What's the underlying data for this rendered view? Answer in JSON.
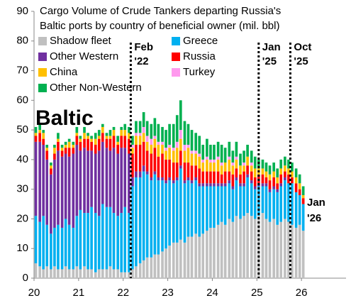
{
  "chart_data": {
    "type": "stacked-bar",
    "title": [
      "Cargo Volume of Crude Tankers departing Russia's",
      "Baltic ports by country of beneficial owner (mil. bbl)"
    ],
    "region": "Baltic",
    "x": [
      20.04,
      20.13,
      20.21,
      20.29,
      20.38,
      20.46,
      20.54,
      20.63,
      20.71,
      20.79,
      20.88,
      20.96,
      21.04,
      21.13,
      21.21,
      21.29,
      21.38,
      21.46,
      21.54,
      21.63,
      21.71,
      21.79,
      21.88,
      21.96,
      22.04,
      22.13,
      22.21,
      22.29,
      22.38,
      22.46,
      22.54,
      22.63,
      22.71,
      22.79,
      22.88,
      22.96,
      23.04,
      23.13,
      23.21,
      23.29,
      23.38,
      23.46,
      23.54,
      23.63,
      23.71,
      23.79,
      23.88,
      23.96,
      24.04,
      24.13,
      24.21,
      24.29,
      24.38,
      24.46,
      24.54,
      24.63,
      24.71,
      24.79,
      24.88,
      24.96,
      25.04,
      25.13,
      25.21,
      25.29,
      25.38,
      25.46,
      25.54,
      25.63,
      25.71,
      25.79,
      25.88,
      25.96,
      26.04
    ],
    "series": [
      {
        "name": "Shadow fleet",
        "color": "#c0c0c0",
        "values": [
          5,
          4,
          3,
          4,
          3,
          4,
          3,
          3,
          4,
          3,
          3,
          4,
          3,
          4,
          3,
          3,
          2,
          3,
          3,
          3,
          4,
          3,
          3,
          2,
          2,
          2,
          3,
          4,
          5,
          6,
          7,
          7,
          8,
          8,
          9,
          10,
          11,
          12,
          12,
          13,
          12,
          14,
          14,
          15,
          14,
          15,
          16,
          17,
          17,
          18,
          19,
          18,
          20,
          19,
          21,
          20,
          21,
          22,
          21,
          20,
          21,
          22,
          20,
          19,
          20,
          18,
          19,
          20,
          19,
          18,
          17,
          18,
          16
        ]
      },
      {
        "name": "Greece",
        "color": "#00b0f0",
        "values": [
          16,
          15,
          18,
          14,
          12,
          13,
          15,
          14,
          16,
          15,
          14,
          17,
          20,
          18,
          19,
          21,
          20,
          18,
          22,
          21,
          20,
          19,
          18,
          20,
          22,
          20,
          28,
          30,
          29,
          30,
          28,
          26,
          27,
          25,
          24,
          22,
          22,
          20,
          21,
          24,
          20,
          19,
          18,
          18,
          17,
          16,
          15,
          14,
          14,
          13,
          12,
          13,
          12,
          11,
          12,
          11,
          10,
          12,
          11,
          10,
          10,
          9,
          11,
          10,
          10,
          11,
          12,
          13,
          13,
          14,
          12,
          10,
          9
        ]
      },
      {
        "name": "Other Western",
        "color": "#7030a0",
        "values": [
          25,
          27,
          24,
          22,
          20,
          23,
          25,
          24,
          22,
          23,
          25,
          24,
          20,
          22,
          21,
          19,
          20,
          22,
          21,
          20,
          19,
          22,
          21,
          22,
          20,
          20,
          3,
          2,
          2,
          2,
          1,
          1,
          1,
          1,
          1,
          1,
          1,
          1,
          1,
          1,
          1,
          1,
          1,
          1,
          1,
          1,
          1,
          1,
          1,
          1,
          1,
          1,
          1,
          1,
          1,
          1,
          1,
          1,
          1,
          1,
          1,
          1,
          1,
          1,
          1,
          1,
          1,
          1,
          0,
          0,
          0,
          0,
          0
        ]
      },
      {
        "name": "Russia",
        "color": "#ff0000",
        "values": [
          2,
          3,
          2,
          3,
          2,
          2,
          3,
          2,
          2,
          3,
          2,
          3,
          3,
          3,
          4,
          3,
          3,
          4,
          3,
          3,
          4,
          4,
          3,
          4,
          4,
          5,
          8,
          9,
          9,
          8,
          7,
          8,
          8,
          7,
          8,
          7,
          6,
          6,
          5,
          5,
          6,
          5,
          5,
          4,
          5,
          4,
          4,
          4,
          4,
          4,
          3,
          4,
          3,
          4,
          3,
          3,
          4,
          3,
          3,
          3,
          3,
          3,
          2,
          3,
          3,
          2,
          3,
          2,
          3,
          2,
          3,
          2,
          2
        ]
      },
      {
        "name": "China",
        "color": "#ffc000",
        "values": [
          1,
          1,
          2,
          1,
          1,
          2,
          1,
          1,
          1,
          2,
          1,
          1,
          1,
          2,
          1,
          1,
          2,
          1,
          2,
          1,
          1,
          2,
          1,
          2,
          2,
          2,
          2,
          3,
          3,
          3,
          3,
          3,
          3,
          4,
          3,
          3,
          4,
          4,
          5,
          4,
          4,
          5,
          4,
          4,
          4,
          3,
          4,
          3,
          3,
          4,
          3,
          3,
          4,
          3,
          3,
          3,
          2,
          3,
          2,
          3,
          2,
          2,
          2,
          2,
          2,
          2,
          2,
          2,
          2,
          2,
          2,
          2,
          1
        ]
      },
      {
        "name": "Turkey",
        "color": "#ff99ee",
        "values": [
          0,
          0,
          0,
          0,
          0,
          0,
          0,
          0,
          0,
          0,
          0,
          0,
          0,
          0,
          0,
          0,
          0,
          0,
          0,
          0,
          0,
          0,
          0,
          0,
          0,
          0,
          1,
          1,
          1,
          2,
          2,
          2,
          1,
          1,
          1,
          1,
          1,
          1,
          2,
          3,
          2,
          1,
          1,
          1,
          1,
          1,
          1,
          1,
          1,
          1,
          1,
          0,
          1,
          1,
          1,
          0,
          1,
          0,
          1,
          0,
          0,
          0,
          0,
          0,
          0,
          0,
          0,
          0,
          0,
          0,
          0,
          0,
          0
        ]
      },
      {
        "name": "Other Non-Western",
        "color": "#00b050",
        "values": [
          2,
          2,
          1,
          1,
          1,
          1,
          2,
          1,
          1,
          1,
          1,
          2,
          1,
          2,
          1,
          1,
          2,
          2,
          1,
          1,
          2,
          1,
          2,
          1,
          2,
          2,
          3,
          4,
          4,
          5,
          5,
          5,
          6,
          6,
          5,
          6,
          7,
          8,
          9,
          10,
          8,
          7,
          7,
          6,
          6,
          5,
          6,
          5,
          5,
          5,
          6,
          5,
          5,
          4,
          5,
          4,
          4,
          4,
          4,
          4,
          3,
          3,
          3,
          3,
          3,
          3,
          3,
          3,
          3,
          3,
          3,
          3,
          3
        ]
      }
    ],
    "xlim": [
      20,
      27
    ],
    "xticks": [
      20,
      21,
      22,
      23,
      24,
      25,
      26
    ],
    "ylim": [
      0,
      90
    ],
    "yticks": [
      0,
      10,
      20,
      30,
      40,
      50,
      60,
      70,
      80,
      90
    ],
    "markers": [
      {
        "x": 22.17,
        "text": [
          "Feb",
          "'22"
        ]
      },
      {
        "x": 25.04,
        "text": [
          "Jan",
          "'25"
        ]
      },
      {
        "x": 25.75,
        "text": [
          "Oct",
          "'25"
        ]
      }
    ],
    "end_label": {
      "text": [
        "Jan",
        "'26"
      ],
      "color": "#1fa8d8"
    }
  }
}
